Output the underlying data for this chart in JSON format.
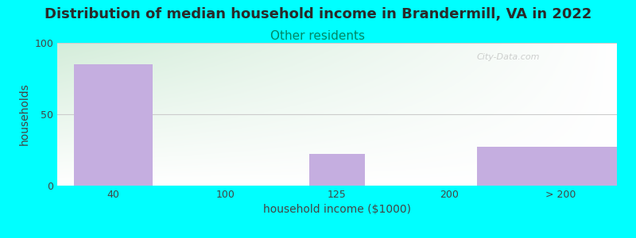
{
  "title": "Distribution of median household income in Brandermill, VA in 2022",
  "subtitle": "Other residents",
  "xlabel": "household income ($1000)",
  "ylabel": "households",
  "background_color": "#00FFFF",
  "bar_color": "#c5aee0",
  "categories": [
    "40",
    "100",
    "125",
    "200",
    "> 200"
  ],
  "values": [
    85,
    0,
    22,
    0,
    27
  ],
  "ylim": [
    0,
    100
  ],
  "yticks": [
    0,
    50,
    100
  ],
  "title_fontsize": 13,
  "subtitle_fontsize": 11,
  "axis_label_fontsize": 10,
  "tick_fontsize": 9,
  "title_color": "#2a2a2a",
  "subtitle_color": "#008866",
  "axis_label_color": "#444444",
  "tick_color": "#444444",
  "watermark_text": "City-Data.com",
  "grid_color": "#cccccc",
  "grad_color_topleft": "#d4edda",
  "grad_color_center": "#f5f0ff",
  "bar_widths": [
    0.7,
    0.0,
    0.5,
    0.0,
    1.5
  ],
  "x_positions": [
    0,
    1,
    2,
    3,
    4
  ]
}
